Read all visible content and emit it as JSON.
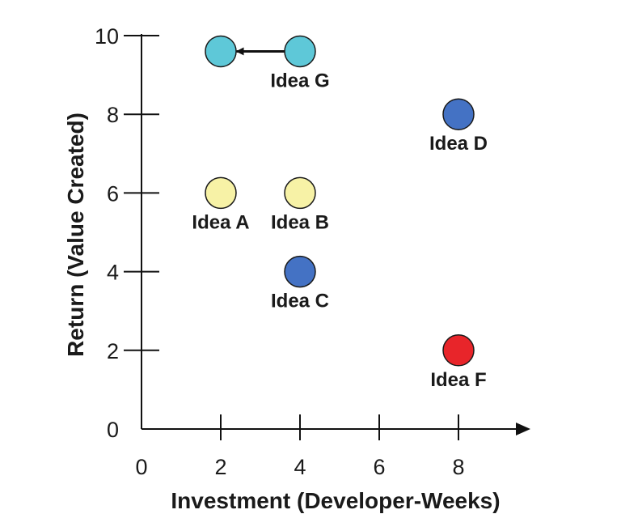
{
  "chart_data": {
    "type": "scatter",
    "title": "",
    "xlabel": "Investment (Developer-Weeks)",
    "ylabel": "Return (Value Created)",
    "xlim": [
      0,
      9.5
    ],
    "ylim": [
      0,
      10
    ],
    "x_ticks": [
      0,
      2,
      4,
      6,
      8
    ],
    "y_ticks": [
      0,
      2,
      4,
      6,
      8,
      10
    ],
    "grid": false,
    "points": [
      {
        "label": "Idea A",
        "x": 2,
        "y": 6,
        "color": "#f7f2a6"
      },
      {
        "label": "Idea B",
        "x": 4,
        "y": 6,
        "color": "#f7f2a6"
      },
      {
        "label": "Idea C",
        "x": 4,
        "y": 4,
        "color": "#4472c4"
      },
      {
        "label": "Idea D",
        "x": 8,
        "y": 8,
        "color": "#4472c4"
      },
      {
        "label": "Idea F",
        "x": 8,
        "y": 2,
        "color": "#e8252a"
      },
      {
        "label": "Idea G",
        "x": 4,
        "y": 9.6,
        "color": "#5ec8d8"
      },
      {
        "label": "",
        "x": 2,
        "y": 9.6,
        "color": "#5ec8d8"
      }
    ],
    "annotations": [
      {
        "type": "arrow",
        "from": [
          3.8,
          9.6
        ],
        "to": [
          2.4,
          9.6
        ]
      }
    ]
  }
}
